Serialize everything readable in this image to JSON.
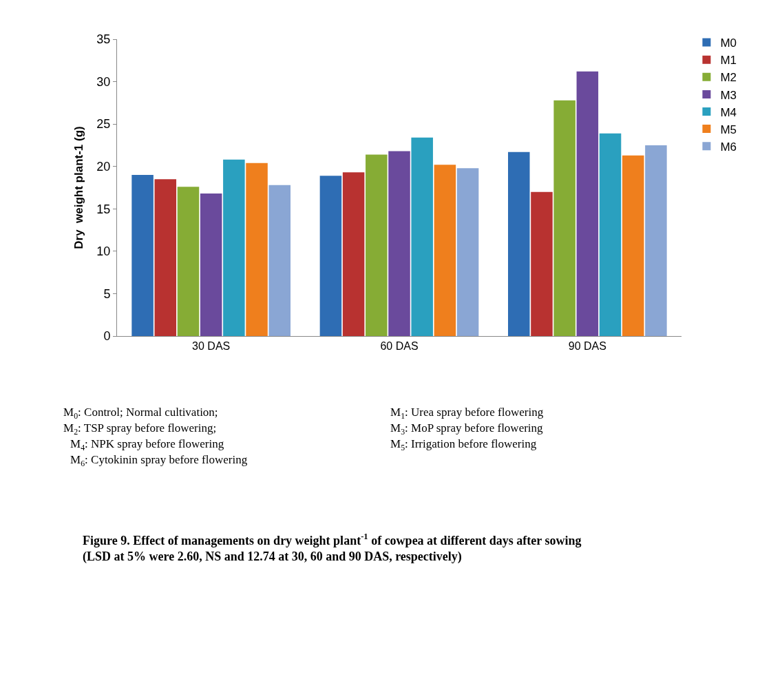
{
  "chart_data": {
    "type": "bar",
    "title": "Figure 9. Effect of managements on dry weight plant$^{-1}$ of cowpea at different days after sowing (LSD at 5% were 2.60, NS and 12.74 at 30, 60 and 90 DAS, respectively)",
    "ylabel": "Dry  weight plant-1 (g)",
    "categories": [
      "30 DAS",
      "60 DAS",
      "90 DAS"
    ],
    "series": [
      {
        "name": "M0",
        "color": "#2e6db4",
        "values": [
          19.0,
          18.9,
          21.7
        ]
      },
      {
        "name": "M1",
        "color": "#b83230",
        "values": [
          18.5,
          19.3,
          17.0
        ]
      },
      {
        "name": "M2",
        "color": "#86ac35",
        "values": [
          17.6,
          21.4,
          27.8
        ]
      },
      {
        "name": "M3",
        "color": "#6a4a9c",
        "values": [
          16.8,
          21.8,
          31.2
        ]
      },
      {
        "name": "M4",
        "color": "#2aa0bf",
        "values": [
          20.8,
          23.4,
          23.9
        ]
      },
      {
        "name": "M5",
        "color": "#ef7f1d",
        "values": [
          20.4,
          20.2,
          21.3
        ]
      },
      {
        "name": "M6",
        "color": "#8aa6d4",
        "values": [
          17.8,
          19.8,
          22.5
        ]
      }
    ],
    "ylim": [
      0,
      35
    ],
    "yticks": [
      0,
      5,
      10,
      15,
      20,
      25,
      30,
      35
    ],
    "legend": "top right",
    "annotations": [
      "M$_{0}$: Control; Normal cultivation;",
      "M$_{1}$: Urea spray before flowering",
      "M$_{2}$: TSP spray before flowering;",
      "M$_{3}$: MoP spray before flowering",
      "M$_{4}$: NPK spray before flowering",
      "M$_{5}$: Irrigation before flowering",
      "M$_{6}$: Cytokinin spray before flowering"
    ]
  }
}
